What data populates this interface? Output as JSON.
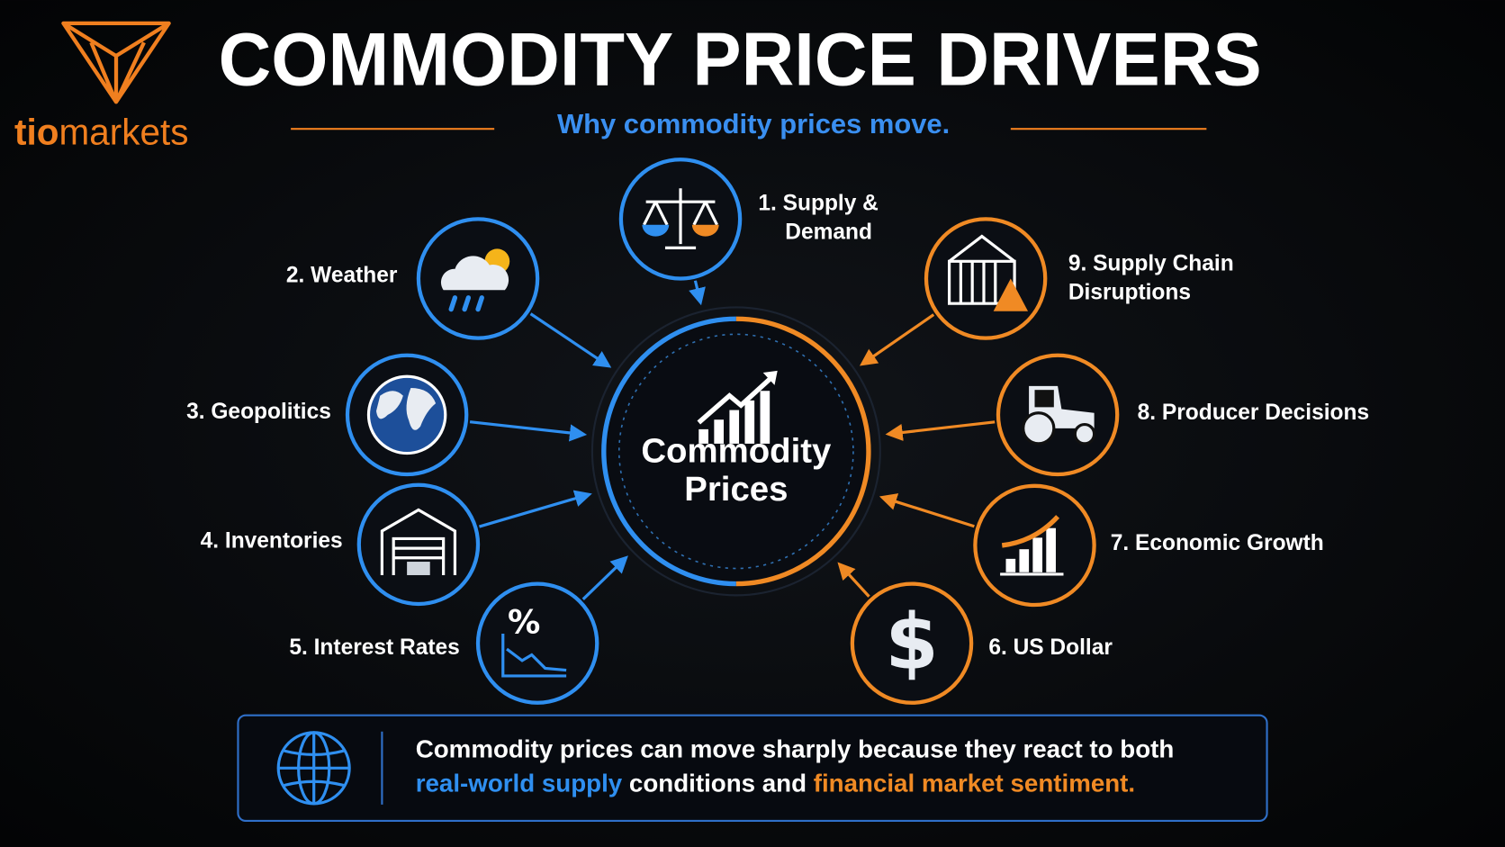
{
  "brand": {
    "bold": "tio",
    "light": "markets"
  },
  "header": {
    "title": "COMMODITY PRICE DRIVERS",
    "subtitle": "Why commodity prices move."
  },
  "center": {
    "lines": [
      "Commodity",
      "Prices"
    ]
  },
  "nodes": [
    {
      "lines": [
        "1. Supply &",
        "Demand"
      ]
    },
    {
      "lines": [
        "2. Weather"
      ]
    },
    {
      "lines": [
        "3. Geopolitics"
      ]
    },
    {
      "lines": [
        "4. Inventories"
      ]
    },
    {
      "lines": [
        "5. Interest Rates"
      ],
      "icon_text": "%"
    },
    {
      "lines": [
        "6. US Dollar"
      ],
      "icon_text": "$"
    },
    {
      "lines": [
        "7. Economic Growth"
      ]
    },
    {
      "lines": [
        "8. Producer Decisions"
      ]
    },
    {
      "lines": [
        "9. Supply Chain",
        "Disruptions"
      ]
    }
  ],
  "footer": {
    "line1": "Commodity prices can move sharply because they react to both",
    "highlight_blue": "real-world supply",
    "middle": " conditions and ",
    "highlight_orange": "financial market sentiment."
  }
}
